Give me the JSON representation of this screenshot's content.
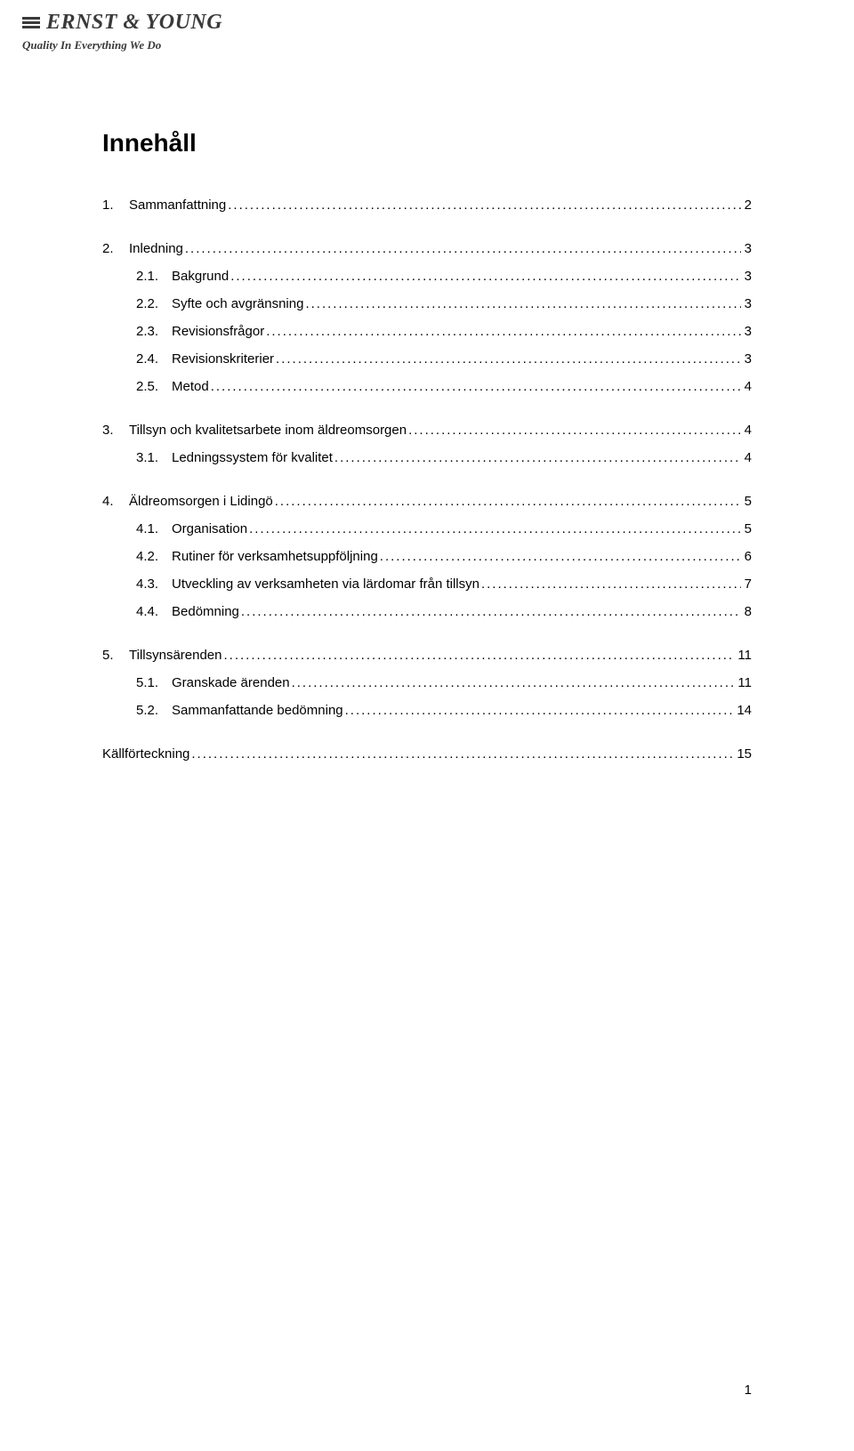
{
  "logo": {
    "name": "ERNST & YOUNG",
    "tagline": "Quality In Everything We Do"
  },
  "heading": "Innehåll",
  "toc": [
    {
      "type": "row",
      "level": 1,
      "num": "1.",
      "label": "Sammanfattning",
      "page": "2"
    },
    {
      "type": "gap"
    },
    {
      "type": "row",
      "level": 1,
      "num": "2.",
      "label": "Inledning",
      "page": "3"
    },
    {
      "type": "row",
      "level": 2,
      "num": "2.1.",
      "label": "Bakgrund",
      "page": "3"
    },
    {
      "type": "row",
      "level": 2,
      "num": "2.2.",
      "label": "Syfte och avgränsning",
      "page": "3"
    },
    {
      "type": "row",
      "level": 2,
      "num": "2.3.",
      "label": "Revisionsfrågor",
      "page": "3"
    },
    {
      "type": "row",
      "level": 2,
      "num": "2.4.",
      "label": "Revisionskriterier",
      "page": "3"
    },
    {
      "type": "row",
      "level": 2,
      "num": "2.5.",
      "label": "Metod",
      "page": "4"
    },
    {
      "type": "gap"
    },
    {
      "type": "row",
      "level": 1,
      "num": "3.",
      "label": "Tillsyn och kvalitetsarbete inom äldreomsorgen",
      "page": "4"
    },
    {
      "type": "row",
      "level": 2,
      "num": "3.1.",
      "label": "Ledningssystem för kvalitet",
      "page": "4"
    },
    {
      "type": "gap"
    },
    {
      "type": "row",
      "level": 1,
      "num": "4.",
      "label": "Äldreomsorgen i Lidingö",
      "page": "5"
    },
    {
      "type": "row",
      "level": 2,
      "num": "4.1.",
      "label": "Organisation",
      "page": "5"
    },
    {
      "type": "row",
      "level": 2,
      "num": "4.2.",
      "label": "Rutiner för verksamhetsuppföljning",
      "page": "6"
    },
    {
      "type": "row",
      "level": 2,
      "num": "4.3.",
      "label": "Utveckling av verksamheten via lärdomar från tillsyn",
      "page": "7"
    },
    {
      "type": "row",
      "level": 2,
      "num": "4.4.",
      "label": "Bedömning",
      "page": "8"
    },
    {
      "type": "gap"
    },
    {
      "type": "row",
      "level": 1,
      "num": "5.",
      "label": "Tillsynsärenden",
      "page": "11"
    },
    {
      "type": "row",
      "level": 2,
      "num": "5.1.",
      "label": "Granskade ärenden",
      "page": "11"
    },
    {
      "type": "row",
      "level": 2,
      "num": "5.2.",
      "label": "Sammanfattande bedömning",
      "page": "14"
    },
    {
      "type": "gap"
    },
    {
      "type": "row",
      "level": 1,
      "num": "",
      "label": "Källförteckning",
      "page": "15"
    }
  ],
  "pageNumber": "1"
}
